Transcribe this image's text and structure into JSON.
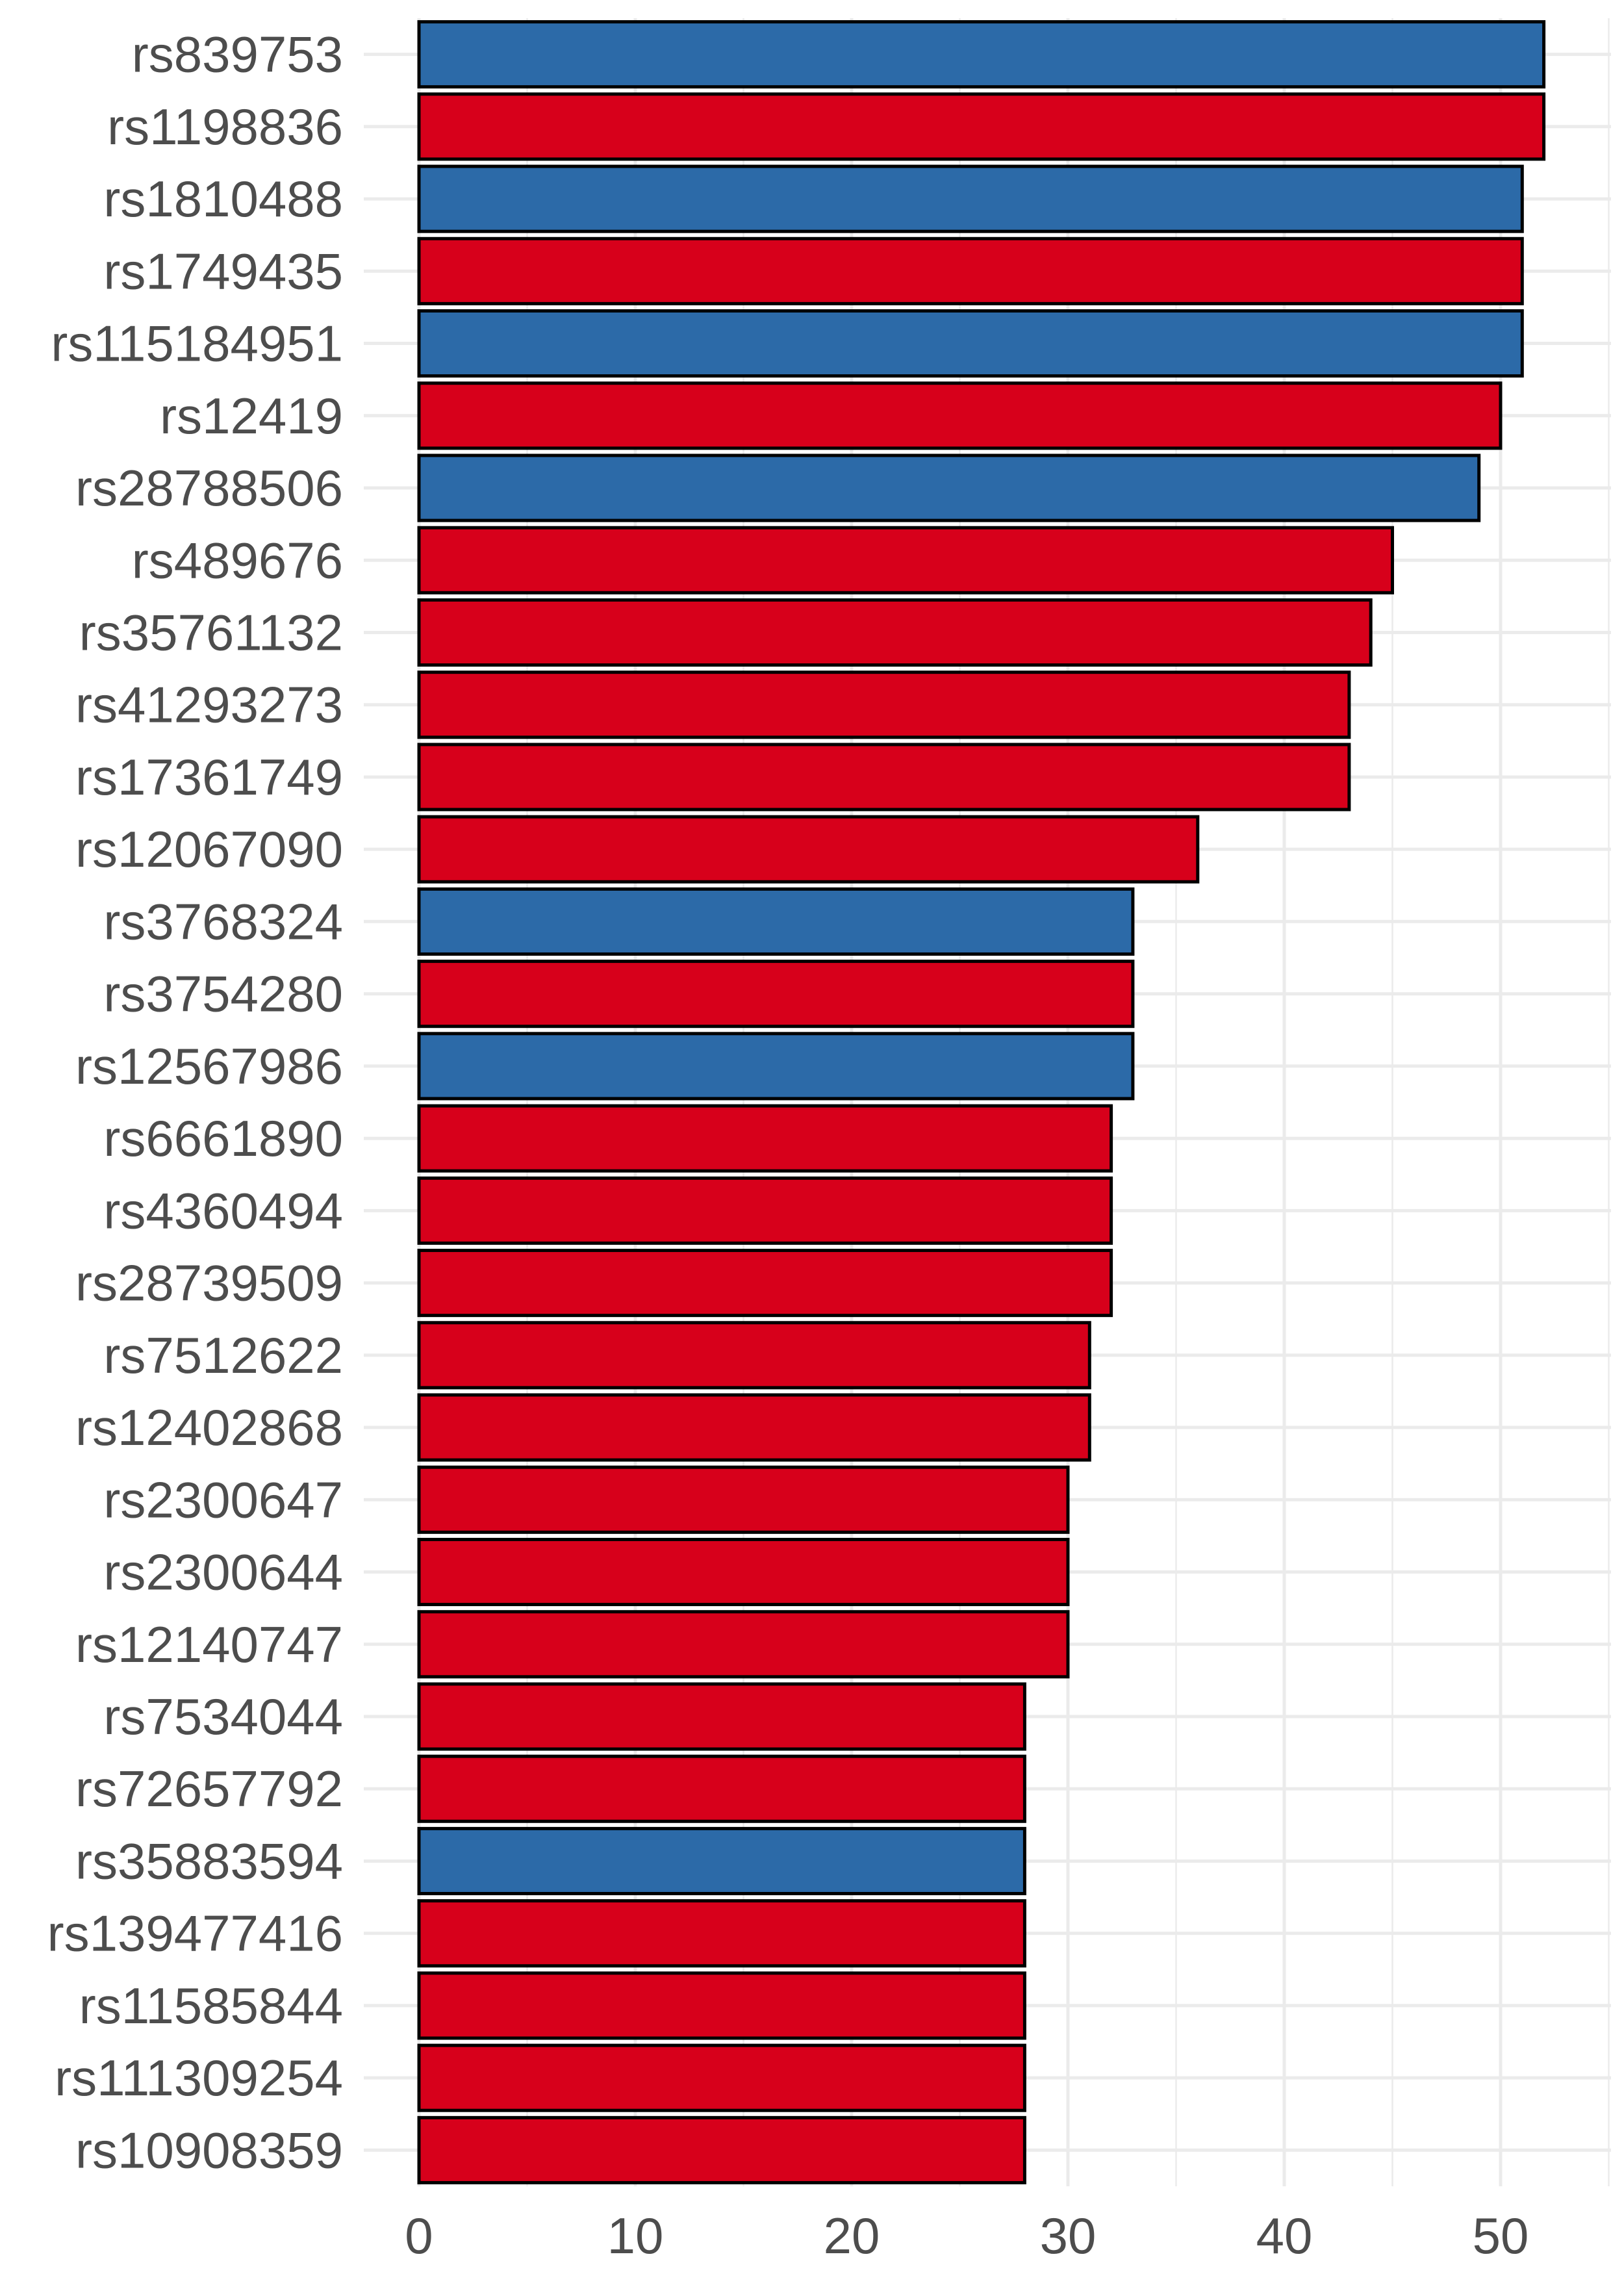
{
  "chart_data": {
    "type": "bar",
    "orientation": "horizontal",
    "title": "",
    "xlabel": "",
    "ylabel": "",
    "xlim": [
      0,
      54.5
    ],
    "x_ticks": [
      0,
      10,
      20,
      30,
      40,
      50
    ],
    "grid": true,
    "legend": "none",
    "colors": {
      "red": "#d7001b",
      "blue": "#2c6aa8",
      "outline": "#000000",
      "grid": "#ebebeb",
      "text": "#4d4d4d"
    },
    "categories": [
      "rs839753",
      "rs1198836",
      "rs1810488",
      "rs1749435",
      "rs115184951",
      "rs12419",
      "rs28788506",
      "rs489676",
      "rs35761132",
      "rs41293273",
      "rs17361749",
      "rs12067090",
      "rs3768324",
      "rs3754280",
      "rs12567986",
      "rs6661890",
      "rs4360494",
      "rs28739509",
      "rs7512622",
      "rs12402868",
      "rs2300647",
      "rs2300644",
      "rs12140747",
      "rs7534044",
      "rs72657792",
      "rs35883594",
      "rs139477416",
      "rs11585844",
      "rs111309254",
      "rs10908359"
    ],
    "values": [
      52,
      52,
      51,
      51,
      51,
      50,
      49,
      45,
      44,
      43,
      43,
      36,
      33,
      33,
      33,
      32,
      32,
      32,
      31,
      31,
      30,
      30,
      30,
      28,
      28,
      28,
      28,
      28,
      28,
      28
    ],
    "bar_colors": [
      "blue",
      "red",
      "blue",
      "red",
      "blue",
      "red",
      "blue",
      "red",
      "red",
      "red",
      "red",
      "red",
      "blue",
      "red",
      "blue",
      "red",
      "red",
      "red",
      "red",
      "red",
      "red",
      "red",
      "red",
      "red",
      "red",
      "blue",
      "red",
      "red",
      "red",
      "red"
    ]
  }
}
